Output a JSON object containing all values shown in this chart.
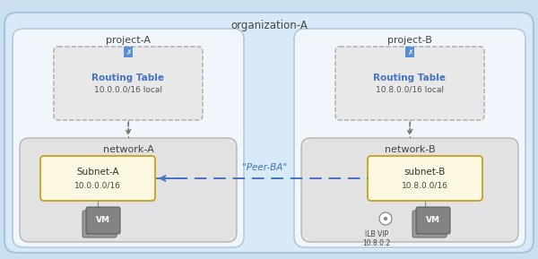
{
  "title": "organization-A",
  "project_a_label": "project-A",
  "project_b_label": "project-B",
  "network_a_label": "network-A",
  "network_b_label": "network-B",
  "routing_table_a_label": "Routing Table",
  "routing_table_a_sub": "10.0.0.0/16 local",
  "routing_table_b_label": "Routing Table",
  "routing_table_b_sub": "10.8.0.0/16 local",
  "subnet_a_label": "Subnet-A",
  "subnet_a_sub": "10.0.0.0/16",
  "subnet_b_label": "subnet-B",
  "subnet_b_sub": "10.8.0.0/16",
  "vm_label": "VM",
  "ilb_label": "ILB VIP\n10.8.0.2",
  "peer_label": "\"Peer-BA\"",
  "bg_color": "#cde0f0",
  "org_box_color": "#d8eaf8",
  "project_box_color": "#f0f6fc",
  "network_box_color": "#e2e2e2",
  "routing_table_box_color": "#e8e8e8",
  "subnet_color": "#fdf8e1",
  "subnet_border_color": "#c8a020",
  "vm_dark": "#7a7a7a",
  "vm_light": "#909090",
  "routing_text_color": "#4472c4",
  "arrow_color": "#4472c4",
  "peer_text_color": "#4472c4",
  "border_color": "#a8c4dc",
  "network_border_color": "#b0b0b0",
  "routing_border_color": "#aaaaaa"
}
